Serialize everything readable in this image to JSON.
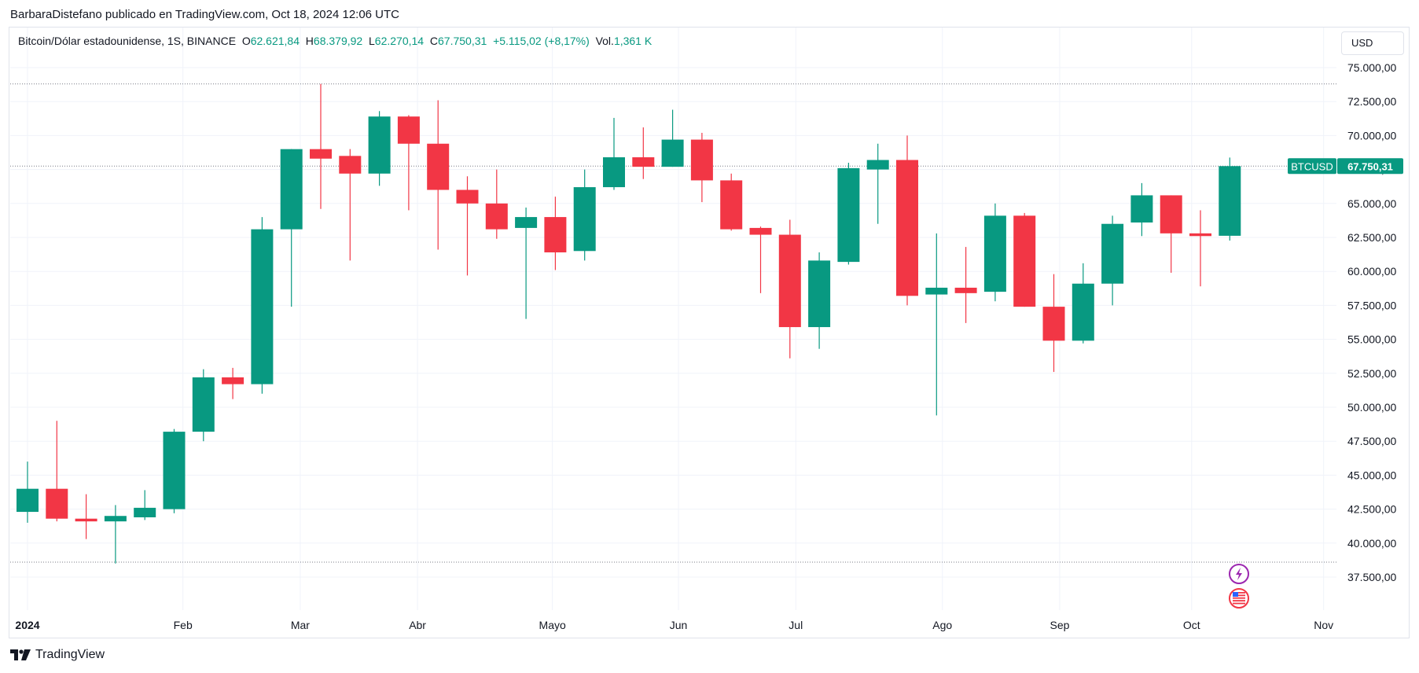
{
  "header": {
    "publisher_line": "BarbaraDistefano publicado en TradingView.com, Oct 18, 2024 12:06 UTC"
  },
  "legend": {
    "symbol": "Bitcoin/Dólar estadounidense, 1S, BINANCE",
    "o_label": "O",
    "o_value": "62.621,84",
    "h_label": "H",
    "h_value": "68.379,92",
    "l_label": "L",
    "l_value": "62.270,14",
    "c_label": "C",
    "c_value": "67.750,31",
    "change": "+5.115,02 (+8,17%)",
    "vol_label": "Vol.",
    "vol_value": "1,361 K"
  },
  "currency_button": "USD",
  "price_tag": {
    "symbol": "BTCUSD",
    "value": "67.750,31"
  },
  "footer": {
    "brand": "TradingView"
  },
  "colors": {
    "up": "#089981",
    "down": "#f23645",
    "grid": "#f0f3fa",
    "axis_text": "#131722"
  },
  "icons": [
    "tv-logo-icon",
    "lightning-event-icon",
    "us-flag-event-icon"
  ],
  "chart_data": {
    "type": "candlestick",
    "series_name": "BTCUSD",
    "yaxis": {
      "min": 36000,
      "max": 76000,
      "ticks": [
        37500,
        40000,
        42500,
        45000,
        47500,
        50000,
        52500,
        55000,
        57500,
        60000,
        62500,
        65000,
        67500,
        70000,
        72500,
        75000
      ],
      "tick_labels": [
        "37.500,00",
        "40.000,00",
        "42.500,00",
        "45.000,00",
        "47.500,00",
        "50.000,00",
        "52.500,00",
        "55.000,00",
        "57.500,00",
        "60.000,00",
        "62.500,00",
        "65.000,00",
        "67.500,00",
        "70.000,00",
        "72.500,00",
        "75.000,00"
      ]
    },
    "xaxis": {
      "labels": [
        {
          "text": "2024",
          "week": 0,
          "bold": true
        },
        {
          "text": "Feb",
          "week": 5.3
        },
        {
          "text": "Mar",
          "week": 9.3
        },
        {
          "text": "Abr",
          "week": 13.3
        },
        {
          "text": "Mayo",
          "week": 17.9
        },
        {
          "text": "Jun",
          "week": 22.2
        },
        {
          "text": "Jul",
          "week": 26.2
        },
        {
          "text": "Ago",
          "week": 31.2
        },
        {
          "text": "Sep",
          "week": 35.2
        },
        {
          "text": "Oct",
          "week": 39.7
        },
        {
          "text": "Nov",
          "week": 44.2
        }
      ],
      "max_week": 44.2
    },
    "reference_lines": [
      73800,
      67750,
      38600
    ],
    "candles": [
      {
        "o": 42300,
        "h": 46000,
        "l": 41500,
        "c": 44000
      },
      {
        "o": 44000,
        "h": 49000,
        "l": 41600,
        "c": 41800
      },
      {
        "o": 41800,
        "h": 43600,
        "l": 40300,
        "c": 41600
      },
      {
        "o": 41600,
        "h": 42800,
        "l": 38500,
        "c": 42000
      },
      {
        "o": 41900,
        "h": 43900,
        "l": 41700,
        "c": 42600
      },
      {
        "o": 42500,
        "h": 48400,
        "l": 42200,
        "c": 48200
      },
      {
        "o": 48200,
        "h": 52800,
        "l": 47500,
        "c": 52200
      },
      {
        "o": 52200,
        "h": 52900,
        "l": 50600,
        "c": 51700
      },
      {
        "o": 51700,
        "h": 64000,
        "l": 51000,
        "c": 63100
      },
      {
        "o": 63100,
        "h": 69000,
        "l": 57400,
        "c": 69000
      },
      {
        "o": 69000,
        "h": 73800,
        "l": 64600,
        "c": 68300
      },
      {
        "o": 68500,
        "h": 69000,
        "l": 60800,
        "c": 67200
      },
      {
        "o": 67200,
        "h": 71800,
        "l": 66300,
        "c": 71400
      },
      {
        "o": 71400,
        "h": 71500,
        "l": 64500,
        "c": 69400
      },
      {
        "o": 69400,
        "h": 72600,
        "l": 61600,
        "c": 66000
      },
      {
        "o": 66000,
        "h": 67000,
        "l": 59700,
        "c": 65000
      },
      {
        "o": 65000,
        "h": 67500,
        "l": 62400,
        "c": 63100
      },
      {
        "o": 63200,
        "h": 64700,
        "l": 56500,
        "c": 64000
      },
      {
        "o": 64000,
        "h": 65500,
        "l": 60100,
        "c": 61400
      },
      {
        "o": 61500,
        "h": 67500,
        "l": 60800,
        "c": 66200
      },
      {
        "o": 66200,
        "h": 71300,
        "l": 66000,
        "c": 68400
      },
      {
        "o": 68400,
        "h": 70600,
        "l": 66800,
        "c": 67700
      },
      {
        "o": 67700,
        "h": 71900,
        "l": 67700,
        "c": 69700
      },
      {
        "o": 69700,
        "h": 70200,
        "l": 65100,
        "c": 66700
      },
      {
        "o": 66700,
        "h": 67200,
        "l": 63000,
        "c": 63100
      },
      {
        "o": 63200,
        "h": 63300,
        "l": 58400,
        "c": 62700
      },
      {
        "o": 62700,
        "h": 63800,
        "l": 53600,
        "c": 55900
      },
      {
        "o": 55900,
        "h": 61400,
        "l": 54300,
        "c": 60800
      },
      {
        "o": 60700,
        "h": 68000,
        "l": 60500,
        "c": 67600
      },
      {
        "o": 67500,
        "h": 69400,
        "l": 63500,
        "c": 68200
      },
      {
        "o": 68200,
        "h": 70000,
        "l": 57500,
        "c": 58200
      },
      {
        "o": 58300,
        "h": 62800,
        "l": 49400,
        "c": 58800
      },
      {
        "o": 58800,
        "h": 61800,
        "l": 56200,
        "c": 58400
      },
      {
        "o": 58500,
        "h": 65000,
        "l": 57800,
        "c": 64100
      },
      {
        "o": 64100,
        "h": 64300,
        "l": 57400,
        "c": 57400
      },
      {
        "o": 57400,
        "h": 59800,
        "l": 52600,
        "c": 54900
      },
      {
        "o": 54900,
        "h": 60600,
        "l": 54700,
        "c": 59100
      },
      {
        "o": 59100,
        "h": 64100,
        "l": 57500,
        "c": 63500
      },
      {
        "o": 63600,
        "h": 66500,
        "l": 62600,
        "c": 65600
      },
      {
        "o": 65600,
        "h": 65600,
        "l": 59900,
        "c": 62800
      },
      {
        "o": 62800,
        "h": 64500,
        "l": 58900,
        "c": 62600
      },
      {
        "o": 62621.84,
        "h": 68379.92,
        "l": 62270.14,
        "c": 67750.31
      }
    ]
  }
}
